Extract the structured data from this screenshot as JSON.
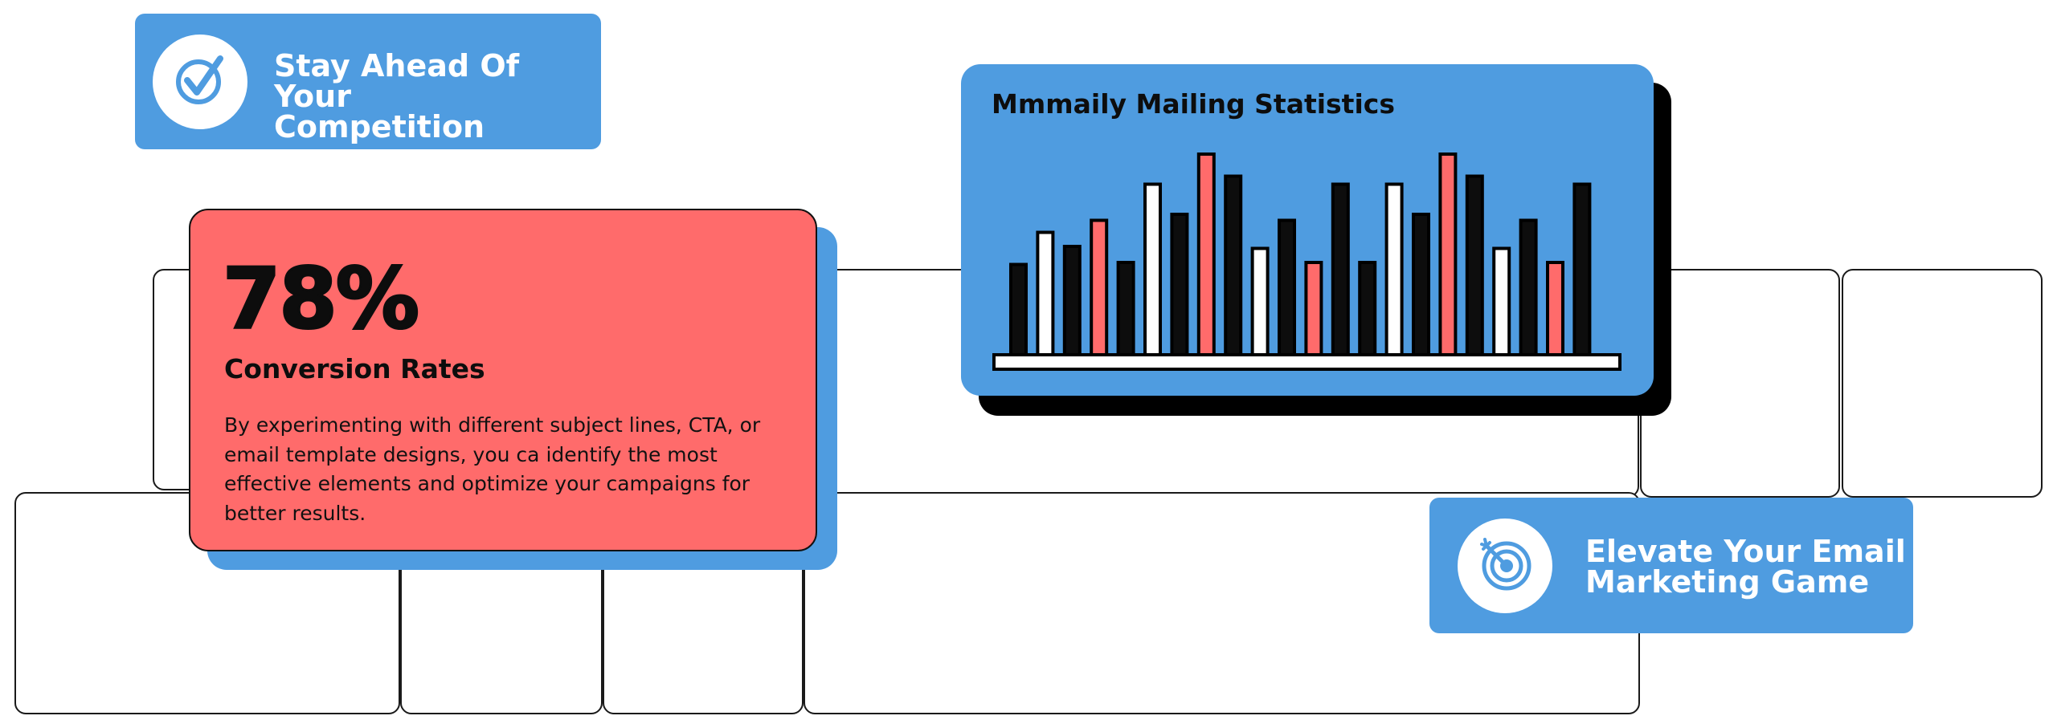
{
  "badges": {
    "competition": {
      "line1": "Stay Ahead Of Your",
      "line2": "Competition",
      "icon": "checkmark-icon"
    },
    "elevate": {
      "line1": "Elevate Your Email",
      "line2": "Marketing Game",
      "icon": "target-icon"
    }
  },
  "conversion": {
    "percent": "78%",
    "heading": "Conversion Rates",
    "body": "By experimenting with different subject lines, CTA, or email template designs, you ca identify the most effective elements and optimize your campaigns for better results."
  },
  "colors": {
    "blue": "#4f9ce0",
    "red": "#ff6b6b",
    "black": "#0d0d0d",
    "white": "#ffffff"
  },
  "chart_data": {
    "type": "bar",
    "title": "Mmmaily Mailing Statistics",
    "xlabel": "",
    "ylabel": "",
    "ylim": [
      0,
      100
    ],
    "grid": false,
    "legend": "none",
    "values": [
      45,
      61,
      54,
      67,
      46,
      85,
      70,
      100,
      89,
      53,
      67,
      46,
      85,
      46,
      85,
      70,
      100,
      89,
      53,
      67,
      46,
      85
    ],
    "bar_colors": [
      "black",
      "white",
      "black",
      "red",
      "black",
      "white",
      "black",
      "red",
      "black",
      "white",
      "black",
      "red",
      "black",
      "black",
      "white",
      "black",
      "red",
      "black",
      "white",
      "black",
      "red",
      "black"
    ]
  }
}
